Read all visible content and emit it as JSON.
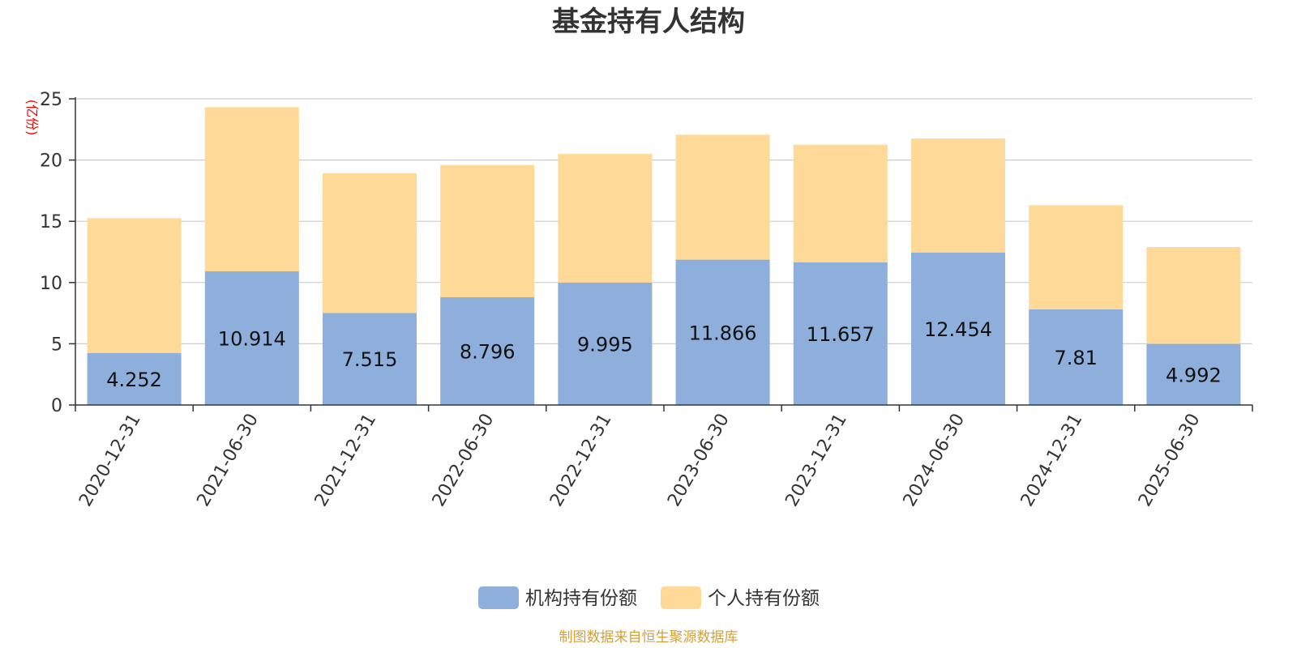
{
  "chart_data": {
    "type": "bar",
    "stacked": true,
    "title": "基金持有人结构",
    "unit_label": "(亿份)",
    "categories": [
      "2020-12-31",
      "2021-06-30",
      "2021-12-31",
      "2022-06-30",
      "2022-12-31",
      "2023-06-30",
      "2023-12-31",
      "2024-06-30",
      "2024-12-31",
      "2025-06-30"
    ],
    "series": [
      {
        "name": "机构持有份额",
        "color": "#8eaedb",
        "values": [
          4.252,
          10.914,
          7.515,
          8.796,
          9.995,
          11.866,
          11.657,
          12.454,
          7.81,
          4.992
        ],
        "labels": [
          "4.252",
          "10.914",
          "7.515",
          "8.796",
          "9.995",
          "11.866",
          "11.657",
          "12.454",
          "7.81",
          "4.992"
        ]
      },
      {
        "name": "个人持有份额",
        "color": "#fed998",
        "values": [
          11.0,
          13.4,
          11.4,
          10.8,
          10.5,
          10.2,
          9.6,
          9.3,
          8.5,
          7.9
        ]
      }
    ],
    "ylim": [
      0,
      25
    ],
    "yticks": [
      "0",
      "5",
      "10",
      "15",
      "20",
      "25"
    ],
    "grid": true,
    "legend_position": "bottom-center",
    "unit_color": "#ff0000",
    "source_color": "#d4a03a"
  },
  "source": "制图数据来自恒生聚源数据库"
}
